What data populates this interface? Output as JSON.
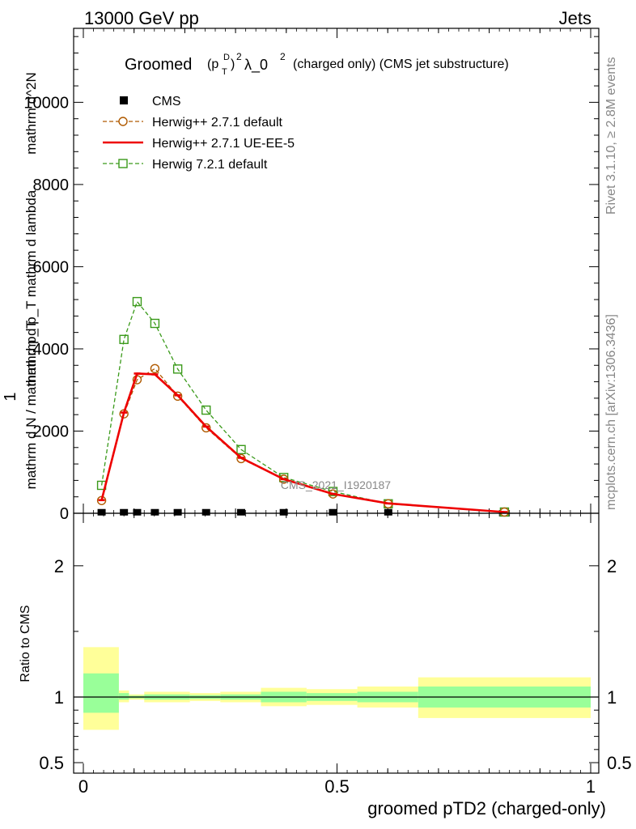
{
  "header": {
    "left": "13000 GeV pp",
    "right": "Jets"
  },
  "side_labels": {
    "rivet": "Rivet 3.1.10, ≥ 2.8M events",
    "mcplots": "mcplots.cern.ch [arXiv:1306.3436]"
  },
  "chart_data": [
    {
      "type": "line",
      "title": "Groomed (p_T^D)^2 λ_0^2 (charged only) (CMS jet substructure)",
      "title_parts": {
        "main": "Groomed",
        "paren_open": "(p",
        "sub": "T",
        "sup_d": "D",
        "paren_close": ")",
        "sq": "2",
        "lambda": "λ_0",
        "rest": "(charged only) (CMS jet substructure)"
      },
      "ylabel_num": "mathrm d^2N",
      "ylabel_den": "mathrm d p_T mathrm d lambda",
      "ylabel_pre": "1",
      "ylabel_pre_den": "mathrm d N / mathrm d p_T",
      "xlim": [
        0,
        1
      ],
      "ylim": [
        0,
        11800
      ],
      "yticks": [
        0,
        2000,
        4000,
        6000,
        8000,
        10000
      ],
      "ytick_labels": [
        "0",
        "2000",
        "4000",
        "6000",
        "8000",
        "10000"
      ],
      "watermark": "CMS_2021_I1920187",
      "legend_position": "top-left",
      "series": [
        {
          "name": "CMS",
          "style": "data-squares",
          "color": "#000000",
          "x": [
            0.036,
            0.08,
            0.106,
            0.141,
            0.186,
            0.242,
            0.311,
            0.395,
            0.492,
            0.601
          ],
          "y": [
            5,
            5,
            5,
            5,
            5,
            5,
            5,
            5,
            5,
            5
          ]
        },
        {
          "name": "Herwig++ 2.7.1 default",
          "style": "dashed-circle",
          "color": "#b05a00",
          "x": [
            0.036,
            0.08,
            0.106,
            0.141,
            0.186,
            0.242,
            0.311,
            0.395,
            0.492,
            0.601,
            0.83
          ],
          "y": [
            310,
            2420,
            3250,
            3520,
            2850,
            2080,
            1330,
            830,
            470,
            230,
            30
          ]
        },
        {
          "name": "Herwig++ 2.7.1 UE-EE-5",
          "style": "solid",
          "color": "#ee0000",
          "x": [
            0.036,
            0.08,
            0.106,
            0.141,
            0.186,
            0.242,
            0.311,
            0.395,
            0.492,
            0.601,
            0.83
          ],
          "y": [
            320,
            2450,
            3400,
            3380,
            2870,
            2110,
            1350,
            830,
            470,
            240,
            30
          ]
        },
        {
          "name": "Herwig 7.2.1 default",
          "style": "dashed-square",
          "color": "#3a9a1a",
          "x": [
            0.036,
            0.08,
            0.106,
            0.141,
            0.186,
            0.242,
            0.311,
            0.395,
            0.492,
            0.601,
            0.83
          ],
          "y": [
            680,
            4230,
            5150,
            4620,
            3510,
            2510,
            1550,
            870,
            530,
            230,
            30
          ]
        }
      ]
    },
    {
      "type": "area",
      "ylabel": "Ratio to CMS",
      "xlabel": "groomed pTD2 (charged-only)",
      "xlim": [
        0,
        1
      ],
      "ylim": [
        0.42,
        2.4
      ],
      "xticks": [
        0,
        0.5,
        1
      ],
      "xtick_labels": [
        "0",
        "0.5",
        "1"
      ],
      "yticks": [
        0.5,
        1,
        2
      ],
      "ytick_labels": [
        "0.5",
        "1",
        "2"
      ],
      "reference_line": 1,
      "bands": [
        {
          "x0": 0.0,
          "x1": 0.07,
          "outer": [
            0.75,
            1.38
          ],
          "inner": [
            0.88,
            1.18
          ],
          "outer_color": "#ffff99",
          "inner_color": "#99ff99"
        },
        {
          "x0": 0.07,
          "x1": 0.09,
          "outer": [
            0.96,
            1.05
          ],
          "inner": [
            0.98,
            1.03
          ],
          "outer_color": "#ffff99",
          "inner_color": "#99ff99"
        },
        {
          "x0": 0.09,
          "x1": 0.12,
          "outer": [
            0.98,
            1.02
          ],
          "inner": [
            0.99,
            1.01
          ],
          "outer_color": "#ffff99",
          "inner_color": "#99ff99"
        },
        {
          "x0": 0.12,
          "x1": 0.21,
          "outer": [
            0.96,
            1.04
          ],
          "inner": [
            0.98,
            1.02
          ],
          "outer_color": "#ffff99",
          "inner_color": "#99ff99"
        },
        {
          "x0": 0.21,
          "x1": 0.27,
          "outer": [
            0.97,
            1.03
          ],
          "inner": [
            0.985,
            1.015
          ],
          "outer_color": "#ffff99",
          "inner_color": "#99ff99"
        },
        {
          "x0": 0.27,
          "x1": 0.35,
          "outer": [
            0.96,
            1.04
          ],
          "inner": [
            0.98,
            1.02
          ],
          "outer_color": "#ffff99",
          "inner_color": "#99ff99"
        },
        {
          "x0": 0.35,
          "x1": 0.44,
          "outer": [
            0.93,
            1.07
          ],
          "inner": [
            0.96,
            1.04
          ],
          "outer_color": "#ffff99",
          "inner_color": "#99ff99"
        },
        {
          "x0": 0.44,
          "x1": 0.54,
          "outer": [
            0.94,
            1.06
          ],
          "inner": [
            0.97,
            1.03
          ],
          "outer_color": "#ffff99",
          "inner_color": "#99ff99"
        },
        {
          "x0": 0.54,
          "x1": 0.66,
          "outer": [
            0.92,
            1.08
          ],
          "inner": [
            0.96,
            1.04
          ],
          "outer_color": "#ffff99",
          "inner_color": "#99ff99"
        },
        {
          "x0": 0.66,
          "x1": 1.0,
          "outer": [
            0.84,
            1.15
          ],
          "inner": [
            0.92,
            1.08
          ],
          "outer_color": "#ffff99",
          "inner_color": "#99ff99"
        }
      ]
    }
  ]
}
